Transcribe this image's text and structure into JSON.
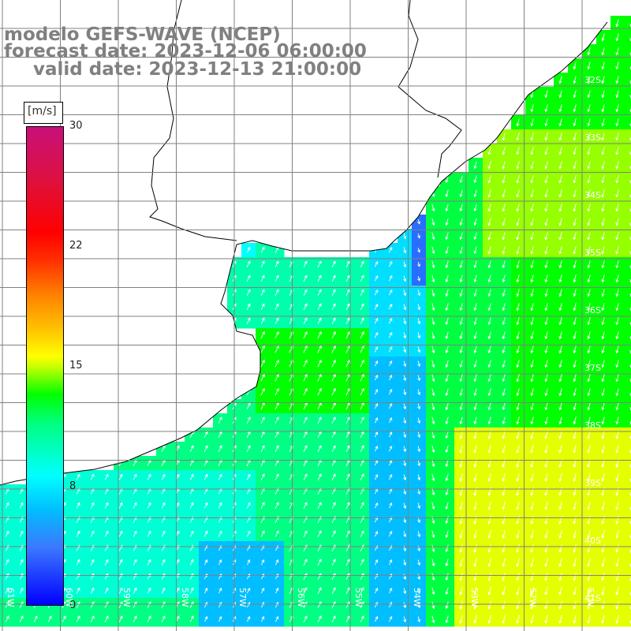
{
  "title": {
    "line1": "modelo GEFS-WAVE (NCEP)",
    "line2": "forecast date: 2023-12-06 06:00:00",
    "line3": "valid date: 2023-12-13 21:00:00"
  },
  "colorbar": {
    "unit": "[m/s]",
    "min": 0,
    "max": 30,
    "ticks": [
      "30",
      "22",
      "15",
      "8",
      "0"
    ],
    "colors": [
      "#0000ff",
      "#3b78ff",
      "#00bfff",
      "#00ffff",
      "#00ff80",
      "#00ff00",
      "#ccff00",
      "#ffff00",
      "#ffbf00",
      "#ff8000",
      "#ff0000",
      "#c8107a"
    ]
  },
  "map": {
    "lat_labels": [
      "32S",
      "33S",
      "34S",
      "35S",
      "36S",
      "37S",
      "38S",
      "39S",
      "40S",
      "41S"
    ],
    "lon_labels": [
      "61W",
      "60W",
      "59W",
      "58W",
      "57W",
      "56W",
      "55W",
      "54W",
      "53W",
      "52W",
      "51W"
    ],
    "land_color": "#ffffff",
    "grid_color": "#808080",
    "arrow_color": "#ffffff"
  }
}
